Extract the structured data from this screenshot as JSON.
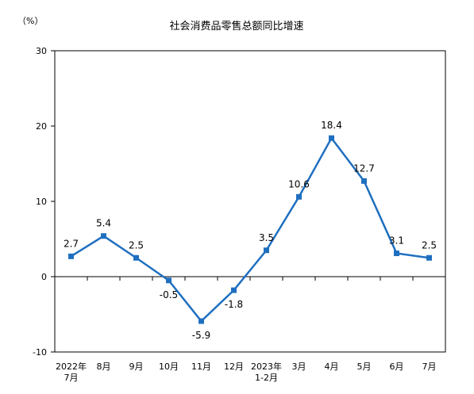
{
  "chart_data": {
    "type": "line",
    "title": "社会消费品零售总额同比增速",
    "ylabel": "（%）",
    "xlabel": "",
    "categories": [
      [
        "2022年",
        "7月"
      ],
      [
        "8月"
      ],
      [
        "9月"
      ],
      [
        "10月"
      ],
      [
        "11月"
      ],
      [
        "12月"
      ],
      [
        "2023年",
        "1-2月"
      ],
      [
        "3月"
      ],
      [
        "4月"
      ],
      [
        "5月"
      ],
      [
        "6月"
      ],
      [
        "7月"
      ]
    ],
    "series": [
      {
        "values": [
          2.7,
          5.4,
          2.5,
          -0.5,
          -5.9,
          -1.8,
          3.5,
          10.6,
          18.4,
          12.7,
          3.1,
          2.5
        ],
        "labels": [
          "2.7",
          "5.4",
          "2.5",
          "-0.5",
          "-5.9",
          "-1.8",
          "3.5",
          "10.6",
          "18.4",
          "12.7",
          "3.1",
          "2.5"
        ],
        "color": "#1f6fc0"
      }
    ],
    "ylim": [
      -10,
      30
    ],
    "yticks": [
      "-10",
      "0",
      "10",
      "20",
      "30"
    ],
    "grid": false,
    "legend": "none"
  }
}
